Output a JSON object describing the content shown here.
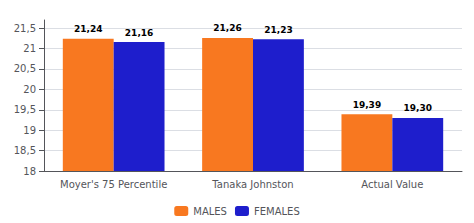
{
  "chart_data": {
    "type": "bar",
    "categories": [
      "Moyer's 75 Percentile",
      "Tanaka Johnston",
      "Actual Value"
    ],
    "series": [
      {
        "name": "MALES",
        "color": "#F87820",
        "values": [
          21.24,
          21.26,
          19.39
        ],
        "value_labels": [
          "21,24",
          "21,26",
          "19,39"
        ]
      },
      {
        "name": "FEMALES",
        "color": "#1E1ECC",
        "values": [
          21.16,
          21.23,
          19.3
        ],
        "value_labels": [
          "21,16",
          "21,23",
          "19,30"
        ]
      }
    ],
    "ylim": [
      18,
      21.7
    ],
    "yticks": [
      18,
      {
        "value": 18.5,
        "label": "18,5"
      },
      19,
      {
        "value": 19.5,
        "label": "19,5"
      },
      20,
      {
        "value": 20.5,
        "label": "20,5"
      },
      21,
      {
        "value": 21.5,
        "label": "21,5"
      }
    ],
    "grid": true,
    "legend": "bottom",
    "data_labels": true
  }
}
